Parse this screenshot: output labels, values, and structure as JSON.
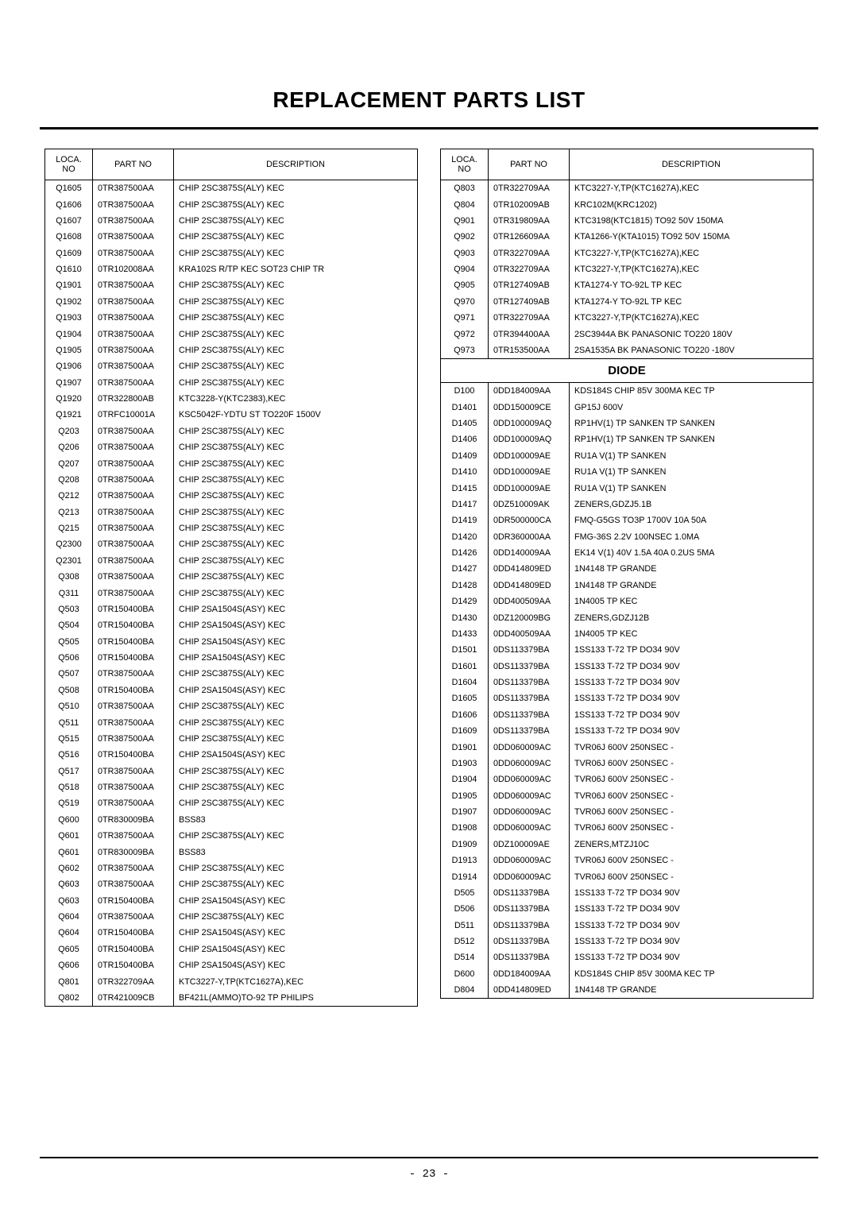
{
  "title": "REPLACEMENT PARTS LIST",
  "page_number": "- 23 -",
  "headers": {
    "loca": "LOCA. NO",
    "partno": "PART NO",
    "desc": "DESCRIPTION"
  },
  "section_diode": "DIODE",
  "left": [
    {
      "loca": "Q1605",
      "partno": "0TR387500AA",
      "desc": "CHIP 2SC3875S(ALY) KEC"
    },
    {
      "loca": "Q1606",
      "partno": "0TR387500AA",
      "desc": "CHIP 2SC3875S(ALY) KEC"
    },
    {
      "loca": "Q1607",
      "partno": "0TR387500AA",
      "desc": "CHIP 2SC3875S(ALY) KEC"
    },
    {
      "loca": "Q1608",
      "partno": "0TR387500AA",
      "desc": "CHIP 2SC3875S(ALY) KEC"
    },
    {
      "loca": "Q1609",
      "partno": "0TR387500AA",
      "desc": "CHIP 2SC3875S(ALY) KEC"
    },
    {
      "loca": "Q1610",
      "partno": "0TR102008AA",
      "desc": "KRA102S R/TP KEC SOT23 CHIP TR"
    },
    {
      "loca": "Q1901",
      "partno": "0TR387500AA",
      "desc": "CHIP 2SC3875S(ALY) KEC"
    },
    {
      "loca": "Q1902",
      "partno": "0TR387500AA",
      "desc": "CHIP 2SC3875S(ALY) KEC"
    },
    {
      "loca": "Q1903",
      "partno": "0TR387500AA",
      "desc": "CHIP 2SC3875S(ALY) KEC"
    },
    {
      "loca": "Q1904",
      "partno": "0TR387500AA",
      "desc": "CHIP 2SC3875S(ALY) KEC"
    },
    {
      "loca": "Q1905",
      "partno": "0TR387500AA",
      "desc": "CHIP 2SC3875S(ALY) KEC"
    },
    {
      "loca": "Q1906",
      "partno": "0TR387500AA",
      "desc": "CHIP 2SC3875S(ALY) KEC"
    },
    {
      "loca": "Q1907",
      "partno": "0TR387500AA",
      "desc": "CHIP 2SC3875S(ALY) KEC"
    },
    {
      "loca": "Q1920",
      "partno": "0TR322800AB",
      "desc": "KTC3228-Y(KTC2383),KEC"
    },
    {
      "loca": "Q1921",
      "partno": "0TRFC10001A",
      "desc": "KSC5042F-YDTU ST TO220F 1500V"
    },
    {
      "loca": "Q203",
      "partno": "0TR387500AA",
      "desc": "CHIP 2SC3875S(ALY) KEC"
    },
    {
      "loca": "Q206",
      "partno": "0TR387500AA",
      "desc": "CHIP 2SC3875S(ALY) KEC"
    },
    {
      "loca": "Q207",
      "partno": "0TR387500AA",
      "desc": "CHIP 2SC3875S(ALY) KEC"
    },
    {
      "loca": "Q208",
      "partno": "0TR387500AA",
      "desc": "CHIP 2SC3875S(ALY) KEC"
    },
    {
      "loca": "Q212",
      "partno": "0TR387500AA",
      "desc": "CHIP 2SC3875S(ALY) KEC"
    },
    {
      "loca": "Q213",
      "partno": "0TR387500AA",
      "desc": "CHIP 2SC3875S(ALY) KEC"
    },
    {
      "loca": "Q215",
      "partno": "0TR387500AA",
      "desc": "CHIP 2SC3875S(ALY) KEC"
    },
    {
      "loca": "Q2300",
      "partno": "0TR387500AA",
      "desc": "CHIP 2SC3875S(ALY) KEC"
    },
    {
      "loca": "Q2301",
      "partno": "0TR387500AA",
      "desc": "CHIP 2SC3875S(ALY) KEC"
    },
    {
      "loca": "Q308",
      "partno": "0TR387500AA",
      "desc": "CHIP 2SC3875S(ALY) KEC"
    },
    {
      "loca": "Q311",
      "partno": "0TR387500AA",
      "desc": "CHIP 2SC3875S(ALY) KEC"
    },
    {
      "loca": "Q503",
      "partno": "0TR150400BA",
      "desc": "CHIP 2SA1504S(ASY) KEC"
    },
    {
      "loca": "Q504",
      "partno": "0TR150400BA",
      "desc": "CHIP 2SA1504S(ASY) KEC"
    },
    {
      "loca": "Q505",
      "partno": "0TR150400BA",
      "desc": "CHIP 2SA1504S(ASY) KEC"
    },
    {
      "loca": "Q506",
      "partno": "0TR150400BA",
      "desc": "CHIP 2SA1504S(ASY) KEC"
    },
    {
      "loca": "Q507",
      "partno": "0TR387500AA",
      "desc": "CHIP 2SC3875S(ALY) KEC"
    },
    {
      "loca": "Q508",
      "partno": "0TR150400BA",
      "desc": "CHIP 2SA1504S(ASY) KEC"
    },
    {
      "loca": "Q510",
      "partno": "0TR387500AA",
      "desc": "CHIP 2SC3875S(ALY) KEC"
    },
    {
      "loca": "Q511",
      "partno": "0TR387500AA",
      "desc": "CHIP 2SC3875S(ALY) KEC"
    },
    {
      "loca": "Q515",
      "partno": "0TR387500AA",
      "desc": "CHIP 2SC3875S(ALY) KEC"
    },
    {
      "loca": "Q516",
      "partno": "0TR150400BA",
      "desc": "CHIP 2SA1504S(ASY) KEC"
    },
    {
      "loca": "Q517",
      "partno": "0TR387500AA",
      "desc": "CHIP 2SC3875S(ALY) KEC"
    },
    {
      "loca": "Q518",
      "partno": "0TR387500AA",
      "desc": "CHIP 2SC3875S(ALY) KEC"
    },
    {
      "loca": "Q519",
      "partno": "0TR387500AA",
      "desc": "CHIP 2SC3875S(ALY) KEC"
    },
    {
      "loca": "Q600",
      "partno": "0TR830009BA",
      "desc": "BSS83"
    },
    {
      "loca": "Q601",
      "partno": "0TR387500AA",
      "desc": "CHIP 2SC3875S(ALY) KEC"
    },
    {
      "loca": "Q601",
      "partno": "0TR830009BA",
      "desc": "BSS83"
    },
    {
      "loca": "Q602",
      "partno": "0TR387500AA",
      "desc": "CHIP 2SC3875S(ALY) KEC"
    },
    {
      "loca": "Q603",
      "partno": "0TR387500AA",
      "desc": "CHIP 2SC3875S(ALY) KEC"
    },
    {
      "loca": "Q603",
      "partno": "0TR150400BA",
      "desc": "CHIP 2SA1504S(ASY) KEC"
    },
    {
      "loca": "Q604",
      "partno": "0TR387500AA",
      "desc": "CHIP 2SC3875S(ALY) KEC"
    },
    {
      "loca": "Q604",
      "partno": "0TR150400BA",
      "desc": "CHIP 2SA1504S(ASY) KEC"
    },
    {
      "loca": "Q605",
      "partno": "0TR150400BA",
      "desc": "CHIP 2SA1504S(ASY) KEC"
    },
    {
      "loca": "Q606",
      "partno": "0TR150400BA",
      "desc": "CHIP 2SA1504S(ASY) KEC"
    },
    {
      "loca": "Q801",
      "partno": "0TR322709AA",
      "desc": "KTC3227-Y,TP(KTC1627A),KEC"
    },
    {
      "loca": "Q802",
      "partno": "0TR421009CB",
      "desc": "BF421L(AMMO)TO-92 TP PHILIPS"
    }
  ],
  "right_a": [
    {
      "loca": "Q803",
      "partno": "0TR322709AA",
      "desc": "KTC3227-Y,TP(KTC1627A),KEC"
    },
    {
      "loca": "Q804",
      "partno": "0TR102009AB",
      "desc": "KRC102M(KRC1202)"
    },
    {
      "loca": "Q901",
      "partno": "0TR319809AA",
      "desc": "KTC3198(KTC1815) TO92 50V 150MA"
    },
    {
      "loca": "Q902",
      "partno": "0TR126609AA",
      "desc": "KTA1266-Y(KTA1015) TO92 50V 150MA"
    },
    {
      "loca": "Q903",
      "partno": "0TR322709AA",
      "desc": "KTC3227-Y,TP(KTC1627A),KEC"
    },
    {
      "loca": "Q904",
      "partno": "0TR322709AA",
      "desc": "KTC3227-Y,TP(KTC1627A),KEC"
    },
    {
      "loca": "Q905",
      "partno": "0TR127409AB",
      "desc": "KTA1274-Y TO-92L TP KEC"
    },
    {
      "loca": "Q970",
      "partno": "0TR127409AB",
      "desc": "KTA1274-Y TO-92L TP KEC"
    },
    {
      "loca": "Q971",
      "partno": "0TR322709AA",
      "desc": "KTC3227-Y,TP(KTC1627A),KEC"
    },
    {
      "loca": "Q972",
      "partno": "0TR394400AA",
      "desc": "2SC3944A BK PANASONIC TO220 180V"
    },
    {
      "loca": "Q973",
      "partno": "0TR153500AA",
      "desc": "2SA1535A BK PANASONIC TO220 -180V"
    }
  ],
  "right_b": [
    {
      "loca": "D100",
      "partno": "0DD184009AA",
      "desc": "KDS184S CHIP 85V 300MA KEC TP"
    },
    {
      "loca": "D1401",
      "partno": "0DD150009CE",
      "desc": "GP15J 600V"
    },
    {
      "loca": "D1405",
      "partno": "0DD100009AQ",
      "desc": "RP1HV(1) TP SANKEN TP SANKEN"
    },
    {
      "loca": "D1406",
      "partno": "0DD100009AQ",
      "desc": "RP1HV(1) TP SANKEN TP SANKEN"
    },
    {
      "loca": "D1409",
      "partno": "0DD100009AE",
      "desc": "RU1A V(1) TP SANKEN"
    },
    {
      "loca": "D1410",
      "partno": "0DD100009AE",
      "desc": "RU1A V(1) TP SANKEN"
    },
    {
      "loca": "D1415",
      "partno": "0DD100009AE",
      "desc": "RU1A V(1) TP SANKEN"
    },
    {
      "loca": "D1417",
      "partno": "0DZ510009AK",
      "desc": "ZENERS,GDZJ5.1B"
    },
    {
      "loca": "D1419",
      "partno": "0DR500000CA",
      "desc": "FMQ-G5GS TO3P 1700V 10A 50A"
    },
    {
      "loca": "D1420",
      "partno": "0DR360000AA",
      "desc": "FMG-36S 2.2V  100NSEC 1.0MA"
    },
    {
      "loca": "D1426",
      "partno": "0DD140009AA",
      "desc": "EK14 V(1) 40V 1.5A 40A 0.2US 5MA"
    },
    {
      "loca": "D1427",
      "partno": "0DD414809ED",
      "desc": "1N4148 TP GRANDE"
    },
    {
      "loca": "D1428",
      "partno": "0DD414809ED",
      "desc": "1N4148 TP GRANDE"
    },
    {
      "loca": "D1429",
      "partno": "0DD400509AA",
      "desc": "1N4005 TP KEC"
    },
    {
      "loca": "D1430",
      "partno": "0DZ120009BG",
      "desc": "ZENERS,GDZJ12B"
    },
    {
      "loca": "D1433",
      "partno": "0DD400509AA",
      "desc": "1N4005 TP KEC"
    },
    {
      "loca": "D1501",
      "partno": "0DS113379BA",
      "desc": "1SS133 T-72 TP DO34 90V"
    },
    {
      "loca": "D1601",
      "partno": "0DS113379BA",
      "desc": "1SS133 T-72 TP DO34 90V"
    },
    {
      "loca": "D1604",
      "partno": "0DS113379BA",
      "desc": "1SS133 T-72 TP DO34 90V"
    },
    {
      "loca": "D1605",
      "partno": "0DS113379BA",
      "desc": "1SS133 T-72 TP DO34 90V"
    },
    {
      "loca": "D1606",
      "partno": "0DS113379BA",
      "desc": "1SS133 T-72 TP DO34 90V"
    },
    {
      "loca": "D1609",
      "partno": "0DS113379BA",
      "desc": "1SS133 T-72 TP DO34 90V"
    },
    {
      "loca": "D1901",
      "partno": "0DD060009AC",
      "desc": "TVR06J 600V 250NSEC -"
    },
    {
      "loca": "D1903",
      "partno": "0DD060009AC",
      "desc": "TVR06J 600V 250NSEC -"
    },
    {
      "loca": "D1904",
      "partno": "0DD060009AC",
      "desc": "TVR06J 600V 250NSEC -"
    },
    {
      "loca": "D1905",
      "partno": "0DD060009AC",
      "desc": "TVR06J 600V 250NSEC -"
    },
    {
      "loca": "D1907",
      "partno": "0DD060009AC",
      "desc": "TVR06J 600V 250NSEC -"
    },
    {
      "loca": "D1908",
      "partno": "0DD060009AC",
      "desc": "TVR06J 600V 250NSEC -"
    },
    {
      "loca": "D1909",
      "partno": "0DZ100009AE",
      "desc": "ZENERS,MTZJ10C"
    },
    {
      "loca": "D1913",
      "partno": "0DD060009AC",
      "desc": "TVR06J 600V 250NSEC -"
    },
    {
      "loca": "D1914",
      "partno": "0DD060009AC",
      "desc": "TVR06J 600V 250NSEC -"
    },
    {
      "loca": "D505",
      "partno": "0DS113379BA",
      "desc": "1SS133 T-72 TP DO34 90V"
    },
    {
      "loca": "D506",
      "partno": "0DS113379BA",
      "desc": "1SS133 T-72 TP DO34 90V"
    },
    {
      "loca": "D511",
      "partno": "0DS113379BA",
      "desc": "1SS133 T-72 TP DO34 90V"
    },
    {
      "loca": "D512",
      "partno": "0DS113379BA",
      "desc": "1SS133 T-72 TP DO34 90V"
    },
    {
      "loca": "D514",
      "partno": "0DS113379BA",
      "desc": "1SS133 T-72 TP DO34 90V"
    },
    {
      "loca": "D600",
      "partno": "0DD184009AA",
      "desc": "KDS184S CHIP 85V 300MA KEC TP"
    },
    {
      "loca": "D804",
      "partno": "0DD414809ED",
      "desc": "1N4148 TP GRANDE"
    }
  ]
}
